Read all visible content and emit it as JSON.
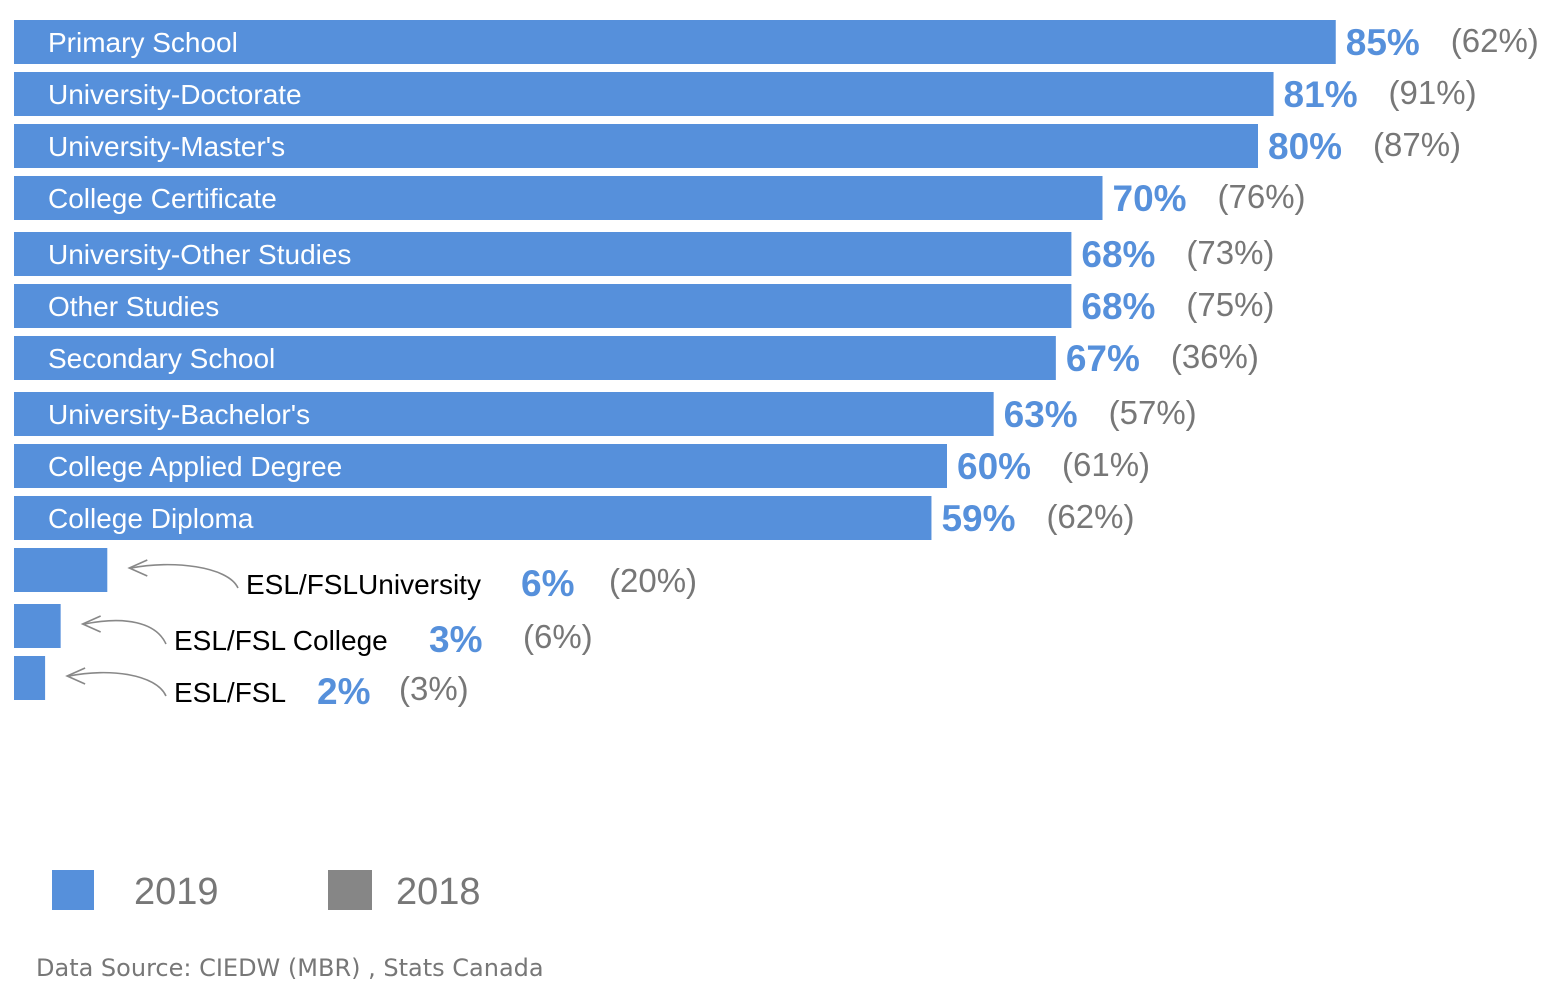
{
  "chart_data": {
    "type": "bar",
    "orientation": "horizontal",
    "categories": [
      "Primary School",
      "University-Doctorate",
      "University-Master's",
      "College Certificate",
      "University-Other Studies",
      "Other Studies",
      "Secondary School",
      "University-Bachelor's",
      "College Applied Degree",
      "College Diploma",
      "ESL/FSLUniversity",
      "ESL/FSL College",
      "ESL/FSL"
    ],
    "series": [
      {
        "name": "2019",
        "values": [
          85,
          81,
          80,
          70,
          68,
          68,
          67,
          63,
          60,
          59,
          6,
          3,
          2
        ],
        "labels": [
          "85%",
          "81%",
          "80%",
          "70%",
          "68%",
          "68%",
          "67%",
          "63%",
          "60%",
          "59%",
          "6%",
          "3%",
          "2%"
        ],
        "color": "#5690DB"
      },
      {
        "name": "2018",
        "values": [
          62,
          91,
          87,
          76,
          73,
          75,
          36,
          57,
          61,
          62,
          20,
          6,
          3
        ],
        "labels": [
          "(62%)",
          "(91%)",
          "(87%)",
          "(76%)",
          "(73%)",
          "(75%)",
          "(36%)",
          "(57%)",
          "(61%)",
          "(62%)",
          "(20%)",
          "(6%)",
          "(3%)"
        ],
        "color": "#868686"
      }
    ],
    "xlim": [
      0,
      100
    ],
    "legend": {
      "position": "bottom-left",
      "entries": [
        "2019",
        "2018"
      ]
    },
    "grid": false,
    "title": "",
    "xlabel": "",
    "ylabel": ""
  },
  "footer": {
    "source": "Data Source: CIEDW (MBR) , Stats Canada"
  }
}
